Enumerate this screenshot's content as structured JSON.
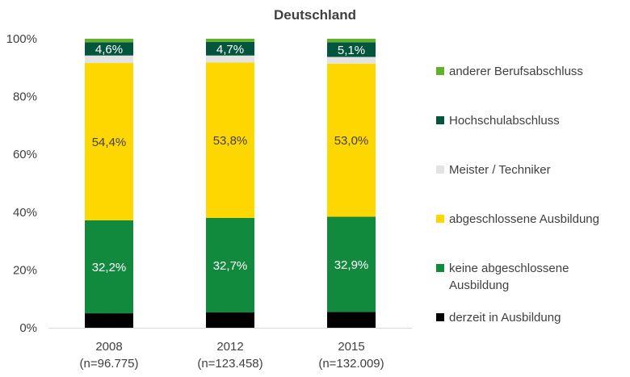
{
  "chart_data": {
    "type": "bar",
    "stacked": true,
    "title": "Deutschland",
    "categories": [
      "2008",
      "2012",
      "2015"
    ],
    "category_sublabels": [
      "(n=96.775)",
      "(n=123.458)",
      "(n=132.009)"
    ],
    "y_ticks": [
      "0%",
      "20%",
      "40%",
      "60%",
      "80%",
      "100%"
    ],
    "ylim": [
      0,
      100
    ],
    "grid": false,
    "legend_position": "right",
    "series": [
      {
        "name": "derzeit in Ausbildung",
        "color": "#000000",
        "values": [
          5.0,
          5.3,
          5.5
        ],
        "labels": [
          "",
          "",
          ""
        ]
      },
      {
        "name": "keine abgeschlossene Ausbildung",
        "color": "#128a3e",
        "values": [
          32.2,
          32.7,
          32.9
        ],
        "labels": [
          "32,2%",
          "32,7%",
          "32,9%"
        ],
        "label_color": "#ffffff"
      },
      {
        "name": "abgeschlossene Ausbildung",
        "color": "#ffd700",
        "values": [
          54.4,
          53.8,
          53.0
        ],
        "labels": [
          "54,4%",
          "53,8%",
          "53,0%"
        ],
        "label_color": "#404040"
      },
      {
        "name": "Meister / Techniker",
        "color": "#e3e3e3",
        "values": [
          2.6,
          2.4,
          2.3
        ],
        "labels": [
          "",
          "",
          ""
        ]
      },
      {
        "name": "Hochschulabschluss",
        "color": "#04553e",
        "values": [
          4.6,
          4.7,
          5.1
        ],
        "labels": [
          "4,6%",
          "4,7%",
          "5,1%"
        ],
        "label_color": "#ffffff"
      },
      {
        "name": "anderer Berufsabschluss",
        "color": "#5fb229",
        "values": [
          1.2,
          1.1,
          1.2
        ],
        "labels": [
          "",
          "",
          ""
        ]
      }
    ]
  }
}
